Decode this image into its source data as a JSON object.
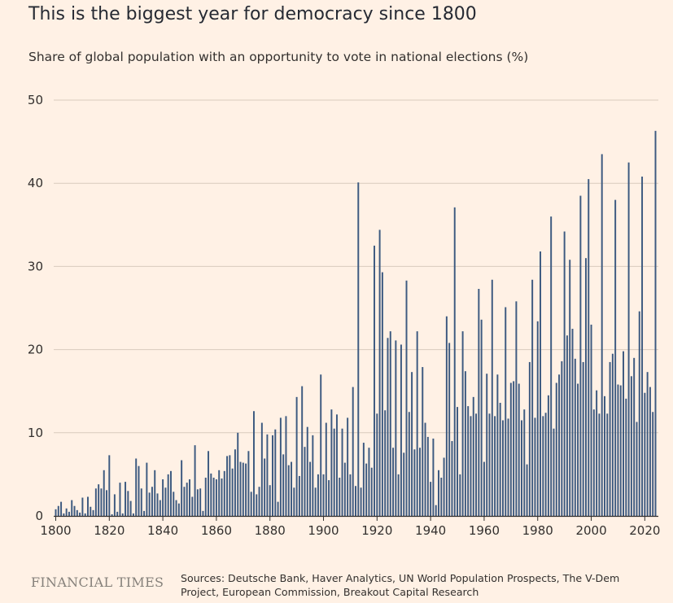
{
  "title": "This is the biggest year for democracy since 1800",
  "subtitle": "Share of global population with an opportunity to vote in national elections (%)",
  "brand": "FINANCIAL TIMES",
  "sources": "Sources: Deutsche Bank, Haver Analytics, UN World Population Prospects, The V-Dem Project, European Commission, Breakout Capital Research",
  "chart_data": {
    "type": "bar",
    "title": "This is the biggest year for democracy since 1800",
    "subtitle": "Share of global population with an opportunity to vote in national elections (%)",
    "xlabel": "",
    "ylabel": "",
    "xlim": [
      1800,
      2024
    ],
    "ylim": [
      0,
      50
    ],
    "yticks": [
      0,
      10,
      20,
      30,
      40,
      50
    ],
    "xticks": [
      1800,
      1820,
      1840,
      1860,
      1880,
      1900,
      1920,
      1940,
      1960,
      1980,
      2000,
      2020
    ],
    "grid": true,
    "bar_color": "#3d5a80",
    "x": [
      1800,
      1801,
      1802,
      1803,
      1804,
      1805,
      1806,
      1807,
      1808,
      1809,
      1810,
      1811,
      1812,
      1813,
      1814,
      1815,
      1816,
      1817,
      1818,
      1819,
      1820,
      1821,
      1822,
      1823,
      1824,
      1825,
      1826,
      1827,
      1828,
      1829,
      1830,
      1831,
      1832,
      1833,
      1834,
      1835,
      1836,
      1837,
      1838,
      1839,
      1840,
      1841,
      1842,
      1843,
      1844,
      1845,
      1846,
      1847,
      1848,
      1849,
      1850,
      1851,
      1852,
      1853,
      1854,
      1855,
      1856,
      1857,
      1858,
      1859,
      1860,
      1861,
      1862,
      1863,
      1864,
      1865,
      1866,
      1867,
      1868,
      1869,
      1870,
      1871,
      1872,
      1873,
      1874,
      1875,
      1876,
      1877,
      1878,
      1879,
      1880,
      1881,
      1882,
      1883,
      1884,
      1885,
      1886,
      1887,
      1888,
      1889,
      1890,
      1891,
      1892,
      1893,
      1894,
      1895,
      1896,
      1897,
      1898,
      1899,
      1900,
      1901,
      1902,
      1903,
      1904,
      1905,
      1906,
      1907,
      1908,
      1909,
      1910,
      1911,
      1912,
      1913,
      1914,
      1915,
      1916,
      1917,
      1918,
      1919,
      1920,
      1921,
      1922,
      1923,
      1924,
      1925,
      1926,
      1927,
      1928,
      1929,
      1930,
      1931,
      1932,
      1933,
      1934,
      1935,
      1936,
      1937,
      1938,
      1939,
      1940,
      1941,
      1942,
      1943,
      1944,
      1945,
      1946,
      1947,
      1948,
      1949,
      1950,
      1951,
      1952,
      1953,
      1954,
      1955,
      1956,
      1957,
      1958,
      1959,
      1960,
      1961,
      1962,
      1963,
      1964,
      1965,
      1966,
      1967,
      1968,
      1969,
      1970,
      1971,
      1972,
      1973,
      1974,
      1975,
      1976,
      1977,
      1978,
      1979,
      1980,
      1981,
      1982,
      1983,
      1984,
      1985,
      1986,
      1987,
      1988,
      1989,
      1990,
      1991,
      1992,
      1993,
      1994,
      1995,
      1996,
      1997,
      1998,
      1999,
      2000,
      2001,
      2002,
      2003,
      2004,
      2005,
      2006,
      2007,
      2008,
      2009,
      2010,
      2011,
      2012,
      2013,
      2014,
      2015,
      2016,
      2017,
      2018,
      2019,
      2020,
      2021,
      2022,
      2023,
      2024
    ],
    "values": [
      0.8,
      1.2,
      1.7,
      0.3,
      0.9,
      0.5,
      1.9,
      1.2,
      0.7,
      0.4,
      2.2,
      0.3,
      2.3,
      1.1,
      0.7,
      3.3,
      3.8,
      3.3,
      5.5,
      3.1,
      7.3,
      0.2,
      2.6,
      0.5,
      4.0,
      0.3,
      4.1,
      3.0,
      1.8,
      0.3,
      6.9,
      6.0,
      3.3,
      0.6,
      6.4,
      2.8,
      3.5,
      5.5,
      2.7,
      1.9,
      4.4,
      3.4,
      5.0,
      5.4,
      2.9,
      1.9,
      1.5,
      6.7,
      3.5,
      4.0,
      4.4,
      2.3,
      8.5,
      3.2,
      3.3,
      0.6,
      4.6,
      7.8,
      5.1,
      4.6,
      4.4,
      5.5,
      4.5,
      5.4,
      7.2,
      7.3,
      5.7,
      8.0,
      10.0,
      6.5,
      6.4,
      6.3,
      7.8,
      2.9,
      12.6,
      2.6,
      3.5,
      11.2,
      6.9,
      9.8,
      3.7,
      9.7,
      10.4,
      1.7,
      11.8,
      7.4,
      12.0,
      6.1,
      6.5,
      3.4,
      14.3,
      4.8,
      15.6,
      8.3,
      10.7,
      6.5,
      9.7,
      3.4,
      5.0,
      17.0,
      5.0,
      11.2,
      4.3,
      12.8,
      10.5,
      12.2,
      4.6,
      10.5,
      6.4,
      11.8,
      5.0,
      15.5,
      3.6,
      40.1,
      3.4,
      8.8,
      6.3,
      8.2,
      5.8,
      32.5,
      12.3,
      34.4,
      29.3,
      12.7,
      21.4,
      22.2,
      8.2,
      21.1,
      5.0,
      20.6,
      7.6,
      28.3,
      12.5,
      17.3,
      8.0,
      22.2,
      8.2,
      17.9,
      11.2,
      9.5,
      4.1,
      9.3,
      1.3,
      5.5,
      4.6,
      7.0,
      24.0,
      20.8,
      9.0,
      37.1,
      13.1,
      5.0,
      22.2,
      17.4,
      13.2,
      12.0,
      14.3,
      12.3,
      27.3,
      23.6,
      6.5,
      17.1,
      12.3,
      28.4,
      12.0,
      17.0,
      13.6,
      11.5,
      25.1,
      11.7,
      16.0,
      16.2,
      25.8,
      15.9,
      11.5,
      12.8,
      6.2,
      18.5,
      28.4,
      11.8,
      23.4,
      31.8,
      12.0,
      12.4,
      14.5,
      36.0,
      10.5,
      16.0,
      17.0,
      18.6,
      34.2,
      21.7,
      30.8,
      22.5,
      18.9,
      15.9,
      38.5,
      18.5,
      31.0,
      40.5,
      23.0,
      12.8,
      15.1,
      12.3,
      43.5,
      14.4,
      12.3,
      18.5,
      19.5,
      38.0,
      15.8,
      15.7,
      19.8,
      14.1,
      42.5,
      16.8,
      19.0,
      11.3,
      24.6,
      40.8,
      14.8,
      17.3,
      15.5,
      12.5,
      46.3
    ]
  }
}
